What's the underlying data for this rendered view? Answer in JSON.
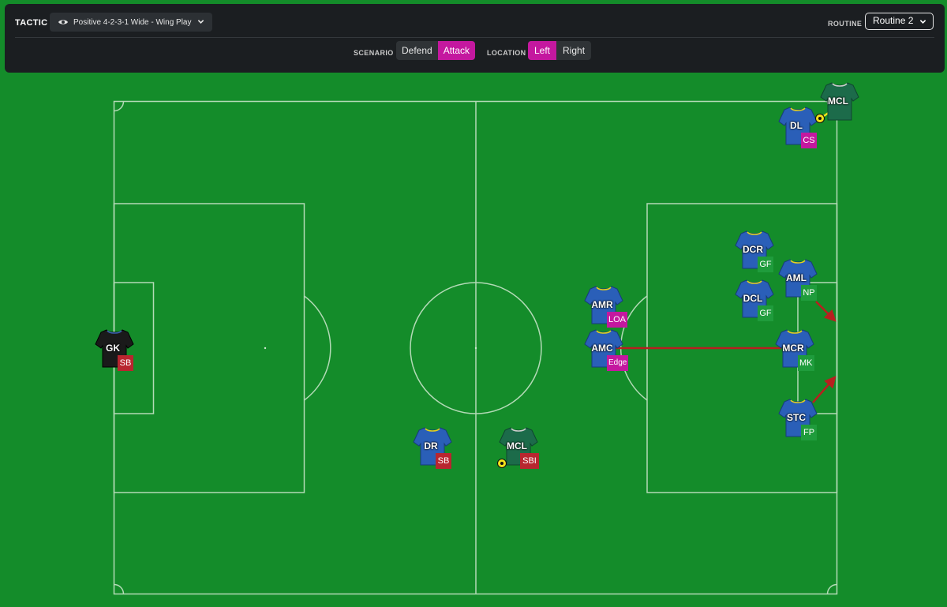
{
  "header": {
    "tactic_label": "TACTIC",
    "tactic_value": "Positive 4-2-3-1 Wide - Wing Play",
    "routine_label": "ROUTINE",
    "routine_value": "Routine 2",
    "scenario_label": "SCENARIO",
    "scenario_options": [
      "Defend",
      "Attack"
    ],
    "scenario_selected": "Attack",
    "location_label": "LOCATION",
    "location_options": [
      "Left",
      "Right"
    ],
    "location_selected": "Left"
  },
  "colors": {
    "pitch": "#148c2a",
    "accent": "#c4189f",
    "role_defensive": "#b8262f",
    "role_attacking": "#c4189f",
    "role_neutral": "#1f9c3c",
    "team_shirt": "#2a5fb8",
    "opponent_shirt": "#1c6b4a",
    "gk_shirt": "#1a1a1a",
    "arrow": "#b81f1f"
  },
  "players": [
    {
      "id": "gk",
      "pos": "GK",
      "role": "SB",
      "role_color": "role_defensive",
      "shirt": "gk_shirt"
    },
    {
      "id": "dr",
      "pos": "DR",
      "role": "SB",
      "role_color": "role_defensive",
      "shirt": "team_shirt"
    },
    {
      "id": "mcl-def",
      "pos": "MCL",
      "role": "SBI",
      "role_color": "role_defensive",
      "shirt": "opponent_shirt",
      "has_ball": true
    },
    {
      "id": "amr",
      "pos": "AMR",
      "role": "LOA",
      "role_color": "role_attacking",
      "shirt": "team_shirt"
    },
    {
      "id": "amc",
      "pos": "AMC",
      "role": "Edge",
      "role_color": "role_attacking",
      "shirt": "team_shirt"
    },
    {
      "id": "dl",
      "pos": "DL",
      "role": "CS",
      "role_color": "role_attacking",
      "shirt": "team_shirt"
    },
    {
      "id": "mcl-att",
      "pos": "MCL",
      "role": "",
      "role_color": "",
      "shirt": "opponent_shirt",
      "has_ball": true
    },
    {
      "id": "dcr",
      "pos": "DCR",
      "role": "GF",
      "role_color": "role_neutral",
      "shirt": "team_shirt"
    },
    {
      "id": "dcl",
      "pos": "DCL",
      "role": "GF",
      "role_color": "role_neutral",
      "shirt": "team_shirt"
    },
    {
      "id": "aml",
      "pos": "AML",
      "role": "NP",
      "role_color": "role_neutral",
      "shirt": "team_shirt"
    },
    {
      "id": "mcr",
      "pos": "MCR",
      "role": "MK",
      "role_color": "role_neutral",
      "shirt": "team_shirt"
    },
    {
      "id": "stc",
      "pos": "STC",
      "role": "FP",
      "role_color": "role_neutral",
      "shirt": "team_shirt"
    }
  ],
  "icons": {
    "eye": "eye-icon",
    "chevron": "chevron-down-icon",
    "ball": "ball-icon"
  }
}
